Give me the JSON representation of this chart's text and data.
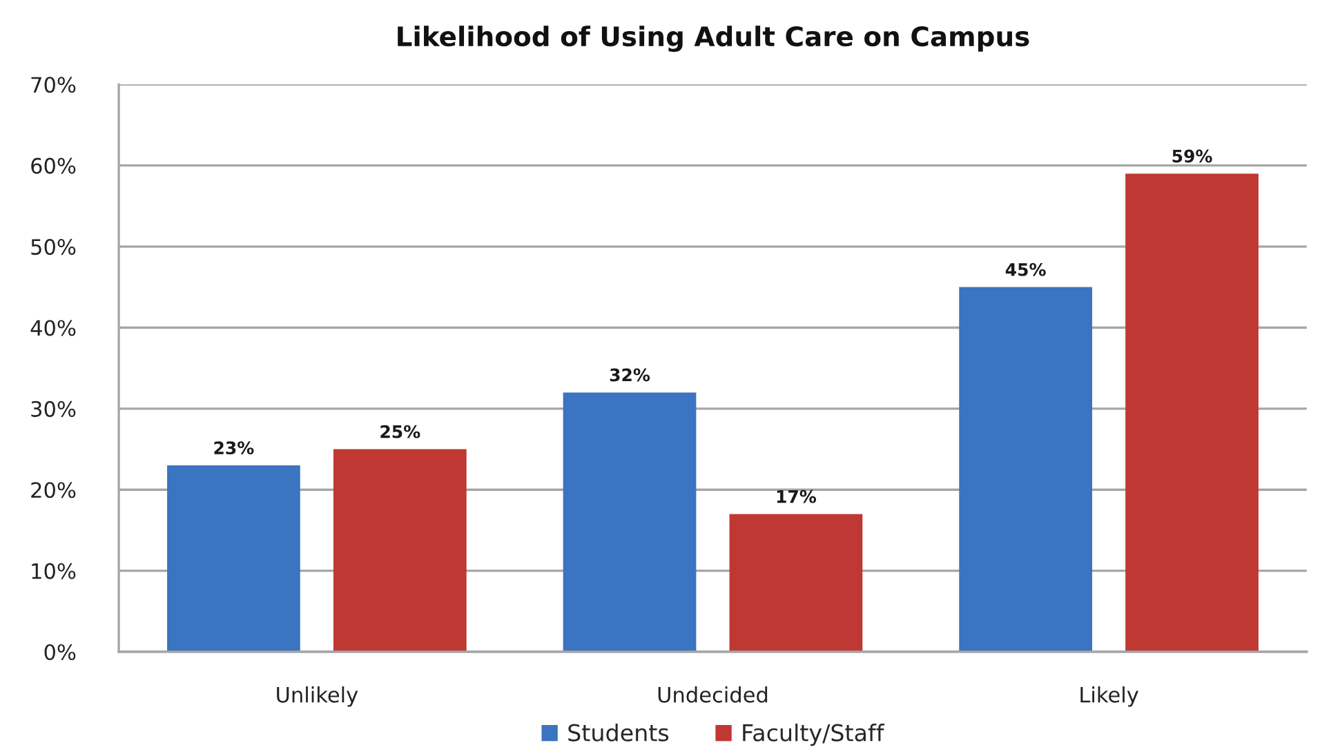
{
  "chart_data": {
    "type": "bar",
    "title": "Likelihood of Using Adult Care on Campus",
    "categories": [
      "Unlikely",
      "Undecided",
      "Likely"
    ],
    "series": [
      {
        "name": "Students",
        "color": "#3b74c0",
        "values": [
          23,
          32,
          45
        ],
        "value_labels": [
          "23%",
          "32%",
          "45%"
        ]
      },
      {
        "name": "Faculty/Staff",
        "color": "#bf3833",
        "values": [
          25,
          17,
          59
        ],
        "value_labels": [
          "25%",
          "17%",
          "59%"
        ]
      }
    ],
    "ylim": [
      0,
      70
    ],
    "yticks": [
      {
        "value": 0,
        "label": "0%"
      },
      {
        "value": 10,
        "label": "10%"
      },
      {
        "value": 20,
        "label": "20%"
      },
      {
        "value": 30,
        "label": "30%"
      },
      {
        "value": 40,
        "label": "40%"
      },
      {
        "value": 50,
        "label": "50%"
      },
      {
        "value": 60,
        "label": "60%"
      },
      {
        "value": 70,
        "label": "70%"
      }
    ],
    "grid": "y",
    "legend": "bottom"
  }
}
